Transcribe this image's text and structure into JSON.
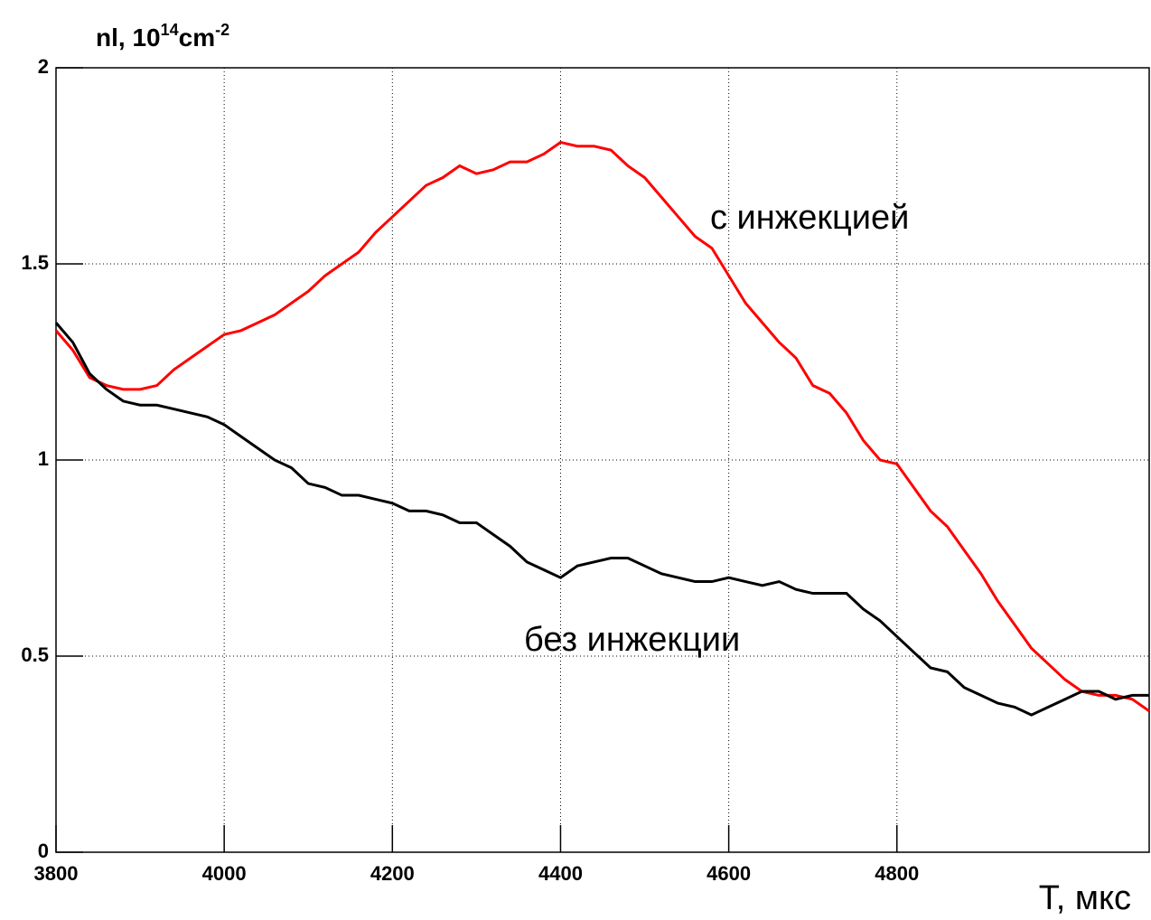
{
  "chart_data": {
    "type": "line",
    "ylabel": [
      "nl, 10",
      "14",
      "cm",
      "-2"
    ],
    "xlabel": "T, мкс",
    "annotations": [
      "с инжекцией",
      "без инжекции"
    ],
    "xlim": [
      3800,
      5100
    ],
    "ylim": [
      0,
      2
    ],
    "xticks": [
      3800,
      4000,
      4200,
      4400,
      4600,
      4800
    ],
    "yticks": [
      0,
      0.5,
      1,
      1.5,
      2
    ],
    "grid": true,
    "x": [
      3800,
      3820,
      3840,
      3860,
      3880,
      3900,
      3920,
      3940,
      3960,
      3980,
      4000,
      4020,
      4040,
      4060,
      4080,
      4100,
      4120,
      4140,
      4160,
      4180,
      4200,
      4220,
      4240,
      4260,
      4280,
      4300,
      4320,
      4340,
      4360,
      4380,
      4400,
      4420,
      4440,
      4460,
      4480,
      4500,
      4520,
      4540,
      4560,
      4580,
      4600,
      4620,
      4640,
      4660,
      4680,
      4700,
      4720,
      4740,
      4760,
      4780,
      4800,
      4820,
      4840,
      4860,
      4880,
      4900,
      4920,
      4940,
      4960,
      4980,
      5000,
      5020,
      5040,
      5060,
      5080,
      5100
    ],
    "series": [
      {
        "color": "#ff0000",
        "values": [
          1.33,
          1.28,
          1.21,
          1.19,
          1.18,
          1.18,
          1.19,
          1.23,
          1.26,
          1.29,
          1.32,
          1.33,
          1.35,
          1.37,
          1.4,
          1.43,
          1.47,
          1.5,
          1.53,
          1.58,
          1.62,
          1.66,
          1.7,
          1.72,
          1.75,
          1.73,
          1.74,
          1.76,
          1.76,
          1.78,
          1.81,
          1.8,
          1.8,
          1.79,
          1.75,
          1.72,
          1.67,
          1.62,
          1.57,
          1.54,
          1.47,
          1.4,
          1.35,
          1.3,
          1.26,
          1.19,
          1.17,
          1.12,
          1.05,
          1.0,
          0.99,
          0.93,
          0.87,
          0.83,
          0.77,
          0.71,
          0.64,
          0.58,
          0.52,
          0.48,
          0.44,
          0.41,
          0.4,
          0.4,
          0.39,
          0.36
        ]
      },
      {
        "color": "#000000",
        "values": [
          1.35,
          1.3,
          1.22,
          1.18,
          1.15,
          1.14,
          1.14,
          1.13,
          1.12,
          1.11,
          1.09,
          1.06,
          1.03,
          1.0,
          0.98,
          0.94,
          0.93,
          0.91,
          0.91,
          0.9,
          0.89,
          0.87,
          0.87,
          0.86,
          0.84,
          0.84,
          0.81,
          0.78,
          0.74,
          0.72,
          0.7,
          0.73,
          0.74,
          0.75,
          0.75,
          0.73,
          0.71,
          0.7,
          0.69,
          0.69,
          0.7,
          0.69,
          0.68,
          0.69,
          0.67,
          0.66,
          0.66,
          0.66,
          0.62,
          0.59,
          0.55,
          0.51,
          0.47,
          0.46,
          0.42,
          0.4,
          0.38,
          0.37,
          0.35,
          0.37,
          0.39,
          0.41,
          0.41,
          0.39,
          0.4,
          0.4
        ]
      }
    ]
  }
}
